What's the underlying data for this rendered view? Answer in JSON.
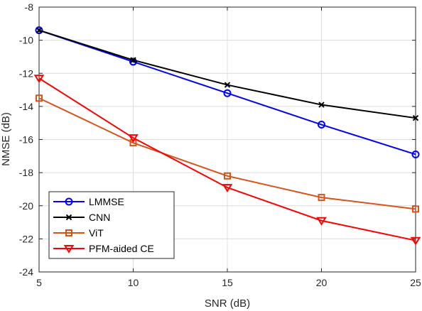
{
  "chart_data": {
    "type": "line",
    "xlabel": "SNR (dB)",
    "ylabel": "NMSE (dB)",
    "xlim": [
      5,
      25
    ],
    "ylim": [
      -24,
      -8
    ],
    "xticks": [
      5,
      10,
      15,
      20,
      25
    ],
    "yticks": [
      -24,
      -22,
      -20,
      -18,
      -16,
      -14,
      -12,
      -10,
      -8
    ],
    "grid": true,
    "legend_position": "bottom-left",
    "x": [
      5,
      10,
      15,
      20,
      25
    ],
    "series": [
      {
        "name": "LMMSE",
        "values": [
          -9.4,
          -11.3,
          -13.2,
          -15.1,
          -16.9
        ],
        "color": "#0000ff",
        "marker": "circle"
      },
      {
        "name": "CNN",
        "values": [
          -9.4,
          -11.2,
          -12.7,
          -13.9,
          -14.7
        ],
        "color": "#000000",
        "marker": "x"
      },
      {
        "name": "ViT",
        "values": [
          -13.5,
          -16.2,
          -18.2,
          -19.5,
          -20.2
        ],
        "color": "#d95319",
        "marker": "square"
      },
      {
        "name": "PFM-aided CE",
        "values": [
          -12.3,
          -15.9,
          -18.9,
          -20.9,
          -22.1
        ],
        "color": "#ff0000",
        "marker": "triangle-down"
      }
    ]
  }
}
